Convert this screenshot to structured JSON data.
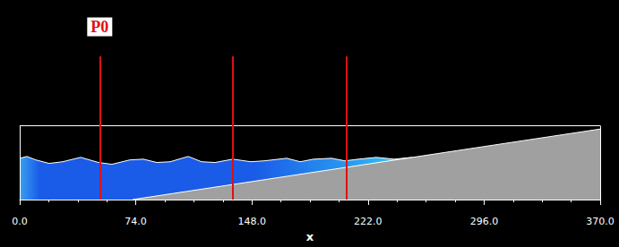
{
  "chart_data": {
    "type": "area",
    "xlabel": "x",
    "xlim": [
      0,
      370
    ],
    "xticks": [
      {
        "value": 0,
        "label": "0.0"
      },
      {
        "value": 74,
        "label": "74.0"
      },
      {
        "value": 148,
        "label": "148.0"
      },
      {
        "value": 222,
        "label": "222.0"
      },
      {
        "value": 296,
        "label": "296.0"
      },
      {
        "value": 370,
        "label": "370.0"
      }
    ],
    "ylim": [
      0,
      95
    ],
    "tick_labels": "x",
    "tank_height": 49,
    "series": [
      {
        "type": "area",
        "color": "#1a5ce8",
        "x": [
          0,
          4.6,
          10.3,
          18.8,
          27.4,
          38.8,
          50.3,
          58.8,
          70.2,
          78.8,
          87.4,
          95.9,
          107.4,
          115.9,
          124.5,
          135.9,
          147.3,
          155.9,
          170.2,
          178.8,
          187.3,
          198.7,
          207.3,
          215.9,
          227.3,
          238.7,
          250
        ],
        "values": [
          27.4,
          28.6,
          26.3,
          24.0,
          25.1,
          28.0,
          24.6,
          23.4,
          26.3,
          26.8,
          24.6,
          25.1,
          28.6,
          25.1,
          24.6,
          26.8,
          25.1,
          25.7,
          27.4,
          25.1,
          26.8,
          27.4,
          25.7,
          26.8,
          28.0,
          26.8,
          28.0
        ]
      },
      {
        "type": "area",
        "color": "#a0a0a0",
        "x": [
          72,
          370
        ],
        "values": [
          0,
          46.8
        ]
      }
    ],
    "probes": {
      "x": [
        51,
        136,
        208
      ],
      "labels": [
        "P0",
        null,
        null
      ],
      "color": "#e01010"
    }
  }
}
